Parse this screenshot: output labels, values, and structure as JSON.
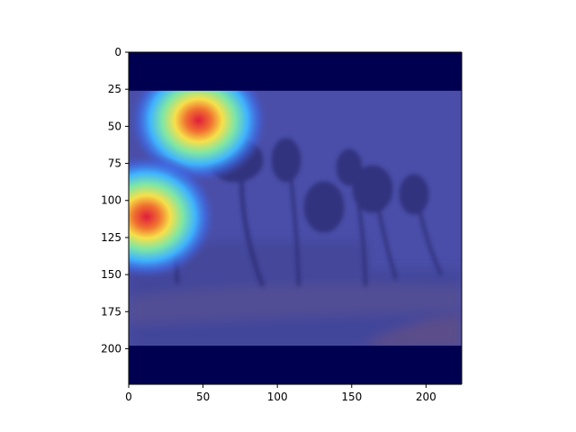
{
  "chart_data": {
    "type": "heatmap",
    "title": "",
    "xlabel": "",
    "ylabel": "",
    "xlim": [
      0,
      224
    ],
    "ylim": [
      224,
      0
    ],
    "x_ticks": [
      0,
      50,
      100,
      150,
      200
    ],
    "x_tick_labels": [
      "0",
      "50",
      "100",
      "150",
      "200"
    ],
    "y_ticks": [
      0,
      25,
      50,
      75,
      100,
      125,
      150,
      175,
      200
    ],
    "y_tick_labels": [
      "0",
      "25",
      "50",
      "75",
      "100",
      "125",
      "150",
      "175",
      "200"
    ],
    "colormap": "jet",
    "overlay_background": "photo of palm trees bending in a storm",
    "letterbox_rows": [
      [
        0,
        26
      ],
      [
        198,
        224
      ]
    ],
    "hotspots": [
      {
        "x": 47,
        "y": 46,
        "intensity": 1.0
      },
      {
        "x": 12,
        "y": 111,
        "intensity": 1.0
      }
    ],
    "grid": false,
    "colors": {
      "letterbox": "#000050",
      "field": "#4a4ea8",
      "hot": "#e0203a"
    }
  }
}
